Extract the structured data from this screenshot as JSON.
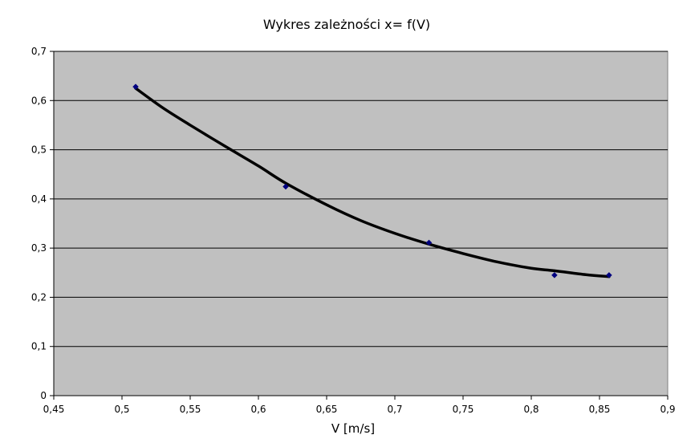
{
  "chart_data": {
    "type": "scatter",
    "title": "Wykres zależności x= f(V)",
    "xlabel": "V [m/s]",
    "ylabel": "",
    "xlim": [
      0.45,
      0.9
    ],
    "ylim": [
      0,
      0.7
    ],
    "x_ticks": [
      "0,45",
      "0,5",
      "0,55",
      "0,6",
      "0,65",
      "0,7",
      "0,75",
      "0,8",
      "0,85",
      "0,9"
    ],
    "y_ticks": [
      "0",
      "0,1",
      "0,2",
      "0,3",
      "0,4",
      "0,5",
      "0,6",
      "0,7"
    ],
    "x_tick_values": [
      0.45,
      0.5,
      0.55,
      0.6,
      0.65,
      0.7,
      0.75,
      0.8,
      0.85,
      0.9
    ],
    "y_tick_values": [
      0,
      0.1,
      0.2,
      0.3,
      0.4,
      0.5,
      0.6,
      0.7
    ],
    "grid": {
      "horizontal": true,
      "vertical": false
    },
    "legend": "none",
    "series": [
      {
        "points": [
          {
            "x": 0.51,
            "y": 0.628
          },
          {
            "x": 0.62,
            "y": 0.425
          },
          {
            "x": 0.725,
            "y": 0.311
          },
          {
            "x": 0.817,
            "y": 0.245
          },
          {
            "x": 0.857,
            "y": 0.245
          }
        ],
        "marker_color": "#000080"
      }
    ],
    "trendline": {
      "type": "polynomial",
      "color": "#000000",
      "x_range": [
        0.51,
        0.857
      ],
      "points": [
        {
          "x": 0.51,
          "y": 0.625
        },
        {
          "x": 0.53,
          "y": 0.585
        },
        {
          "x": 0.55,
          "y": 0.55
        },
        {
          "x": 0.575,
          "y": 0.508
        },
        {
          "x": 0.6,
          "y": 0.467
        },
        {
          "x": 0.62,
          "y": 0.432
        },
        {
          "x": 0.65,
          "y": 0.388
        },
        {
          "x": 0.675,
          "y": 0.356
        },
        {
          "x": 0.7,
          "y": 0.33
        },
        {
          "x": 0.725,
          "y": 0.308
        },
        {
          "x": 0.75,
          "y": 0.289
        },
        {
          "x": 0.775,
          "y": 0.272
        },
        {
          "x": 0.8,
          "y": 0.259
        },
        {
          "x": 0.817,
          "y": 0.254
        },
        {
          "x": 0.84,
          "y": 0.246
        },
        {
          "x": 0.857,
          "y": 0.242
        }
      ]
    },
    "colors": {
      "plot_background": "#c0c0c0",
      "gridline": "#000000",
      "marker": "#000080",
      "trendline": "#000000"
    }
  }
}
